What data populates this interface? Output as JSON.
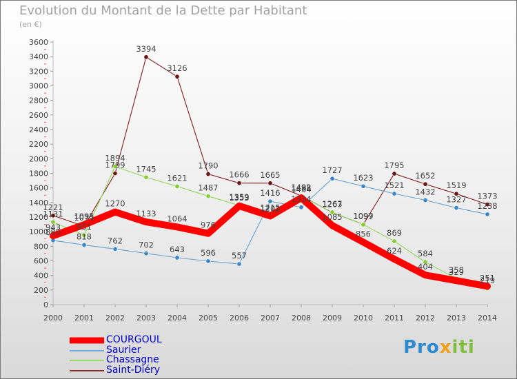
{
  "header": {
    "title": "Evolution du Montant de la Dette par Habitant",
    "subtitle": "(en €)"
  },
  "logo": {
    "text": "Proxiti"
  },
  "chart_data": {
    "type": "line",
    "title": "Evolution du Montant de la Dette par Habitant",
    "subtitle": "(en €)",
    "xlabel": "",
    "ylabel": "",
    "categories": [
      "2000",
      "2001",
      "2002",
      "2003",
      "2004",
      "2005",
      "2006",
      "2007",
      "2008",
      "2009",
      "2010",
      "2011",
      "2012",
      "2013",
      "2014"
    ],
    "ylim": [
      0,
      3600
    ],
    "yticks": [
      0,
      200,
      400,
      600,
      800,
      1000,
      1200,
      1400,
      1600,
      1800,
      2000,
      2200,
      2400,
      2600,
      2800,
      3000,
      3200,
      3400,
      3600
    ],
    "grid": false,
    "legend_position": "bottom-left",
    "series": [
      {
        "name": "Saint-Diéry",
        "color": "#8b2b2b",
        "marker": "#6b1515",
        "values": [
          1221,
          1075,
          1799,
          3394,
          3126,
          1790,
          1666,
          1665,
          1492,
          1263,
          1099,
          1795,
          1652,
          1519,
          1373
        ]
      },
      {
        "name": "Chassagne",
        "color": "#99d966",
        "marker": "#88cc33",
        "values": [
          1131,
          951,
          1894,
          1745,
          1621,
          1487,
          1359,
          1202,
          1488,
          1267,
          1097,
          869,
          584,
          358,
          219
        ]
      },
      {
        "name": "Saurier",
        "color": "#6fa8d6",
        "marker": "#3a87c9",
        "values": [
          880,
          818,
          762,
          702,
          643,
          596,
          557,
          1416,
          1334,
          1727,
          1623,
          1521,
          1432,
          1327,
          1238
        ]
      },
      {
        "name": "COURGOUL",
        "color": "#ff0000",
        "marker": "#ff0000",
        "values": [
          943,
          1095,
          1270,
          1133,
          1064,
          976,
          1353,
          1215,
          1464,
          1085,
          856,
          624,
          404,
          329,
          251
        ]
      }
    ],
    "legend": [
      {
        "name": "COURGOUL",
        "color": "#ff0000",
        "text_color": "#0000cc"
      },
      {
        "name": "Saurier",
        "color": "#6fa8d6",
        "text_color": "#0000cc"
      },
      {
        "name": "Chassagne",
        "color": "#99d966",
        "text_color": "#0000cc"
      },
      {
        "name": "Saint-Diéry",
        "color": "#8b2b2b",
        "text_color": "#0000cc"
      }
    ]
  }
}
